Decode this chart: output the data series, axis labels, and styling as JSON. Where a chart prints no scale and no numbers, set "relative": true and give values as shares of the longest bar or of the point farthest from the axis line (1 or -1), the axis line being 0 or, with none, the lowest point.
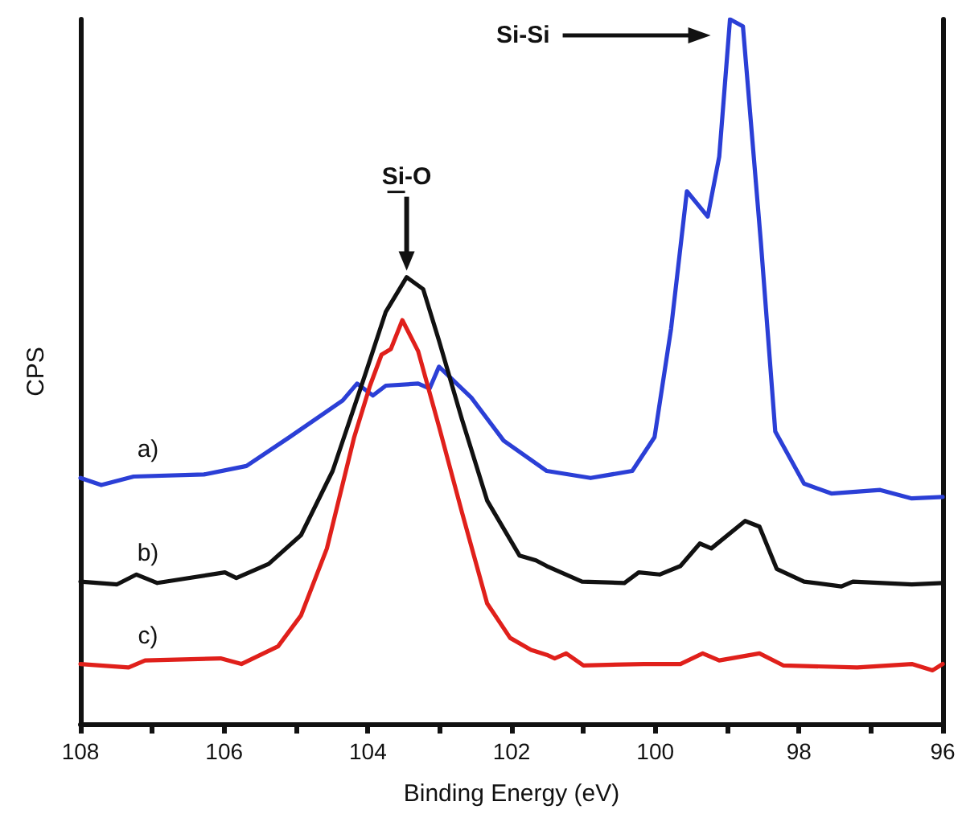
{
  "chart_data": {
    "type": "line",
    "relative": true,
    "xlabel": "Binding Energy (eV)",
    "ylabel": "CPS",
    "xlim": [
      108,
      96
    ],
    "xticks": [
      108,
      106,
      104,
      102,
      100,
      98,
      96,
      {
        "value": 107,
        "label": null
      },
      {
        "value": 105,
        "label": null
      },
      {
        "value": 103,
        "label": null
      },
      {
        "value": 101,
        "label": null
      },
      {
        "value": 99,
        "label": null
      },
      {
        "value": 97,
        "label": null
      }
    ],
    "grid": false,
    "marker": "none",
    "line_style": "solid",
    "series": [
      {
        "name": "a)",
        "color": "#2b3fd6",
        "x": [
          108,
          107.71,
          107.26,
          106.28,
          105.69,
          105.09,
          104.35,
          104.15,
          103.93,
          103.75,
          103.3,
          103.14,
          103.01,
          102.56,
          102.11,
          101.51,
          100.9,
          100.32,
          100.01,
          99.78,
          99.56,
          99.27,
          99.11,
          98.96,
          98.78,
          98.53,
          98.33,
          97.93,
          97.55,
          96.87,
          96.43,
          96
        ],
        "values": [
          0.349,
          0.339,
          0.351,
          0.354,
          0.366,
          0.407,
          0.459,
          0.483,
          0.466,
          0.48,
          0.483,
          0.476,
          0.507,
          0.463,
          0.402,
          0.359,
          0.349,
          0.359,
          0.407,
          0.561,
          0.756,
          0.72,
          0.805,
          1.0,
          0.99,
          0.683,
          0.415,
          0.341,
          0.327,
          0.332,
          0.32,
          0.322
        ]
      },
      {
        "name": "b)",
        "color": "#111111",
        "x": [
          108,
          107.49,
          107.22,
          106.93,
          105.99,
          105.83,
          105.38,
          104.93,
          104.49,
          104.04,
          103.75,
          103.46,
          103.23,
          103.01,
          102.69,
          102.34,
          101.89,
          101.66,
          101.51,
          101.02,
          100.43,
          100.23,
          99.94,
          99.65,
          99.38,
          99.22,
          98.75,
          98.55,
          98.31,
          97.93,
          97.41,
          97.25,
          96.43,
          96
        ],
        "values": [
          0.202,
          0.198,
          0.212,
          0.2,
          0.215,
          0.207,
          0.227,
          0.268,
          0.359,
          0.495,
          0.585,
          0.634,
          0.617,
          0.544,
          0.432,
          0.317,
          0.239,
          0.232,
          0.224,
          0.202,
          0.2,
          0.215,
          0.212,
          0.224,
          0.256,
          0.249,
          0.288,
          0.28,
          0.22,
          0.202,
          0.195,
          0.202,
          0.198,
          0.2
        ]
      },
      {
        "name": "c)",
        "color": "#e0201b",
        "x": [
          108,
          107.33,
          107.1,
          106.05,
          105.76,
          105.25,
          104.93,
          104.57,
          104.19,
          103.97,
          103.81,
          103.68,
          103.52,
          103.3,
          103.01,
          102.69,
          102.34,
          102.02,
          101.73,
          101.51,
          101.4,
          101.24,
          101.0,
          100.16,
          99.65,
          99.34,
          99.11,
          98.55,
          98.22,
          97.19,
          96.43,
          96.14,
          96
        ],
        "values": [
          0.085,
          0.08,
          0.09,
          0.093,
          0.085,
          0.11,
          0.154,
          0.249,
          0.407,
          0.48,
          0.524,
          0.532,
          0.573,
          0.529,
          0.422,
          0.3,
          0.171,
          0.122,
          0.105,
          0.098,
          0.093,
          0.1,
          0.083,
          0.085,
          0.085,
          0.1,
          0.09,
          0.1,
          0.083,
          0.08,
          0.085,
          0.076,
          0.085
        ]
      }
    ],
    "annotations": [
      "Si-O",
      "Si-Si"
    ]
  }
}
